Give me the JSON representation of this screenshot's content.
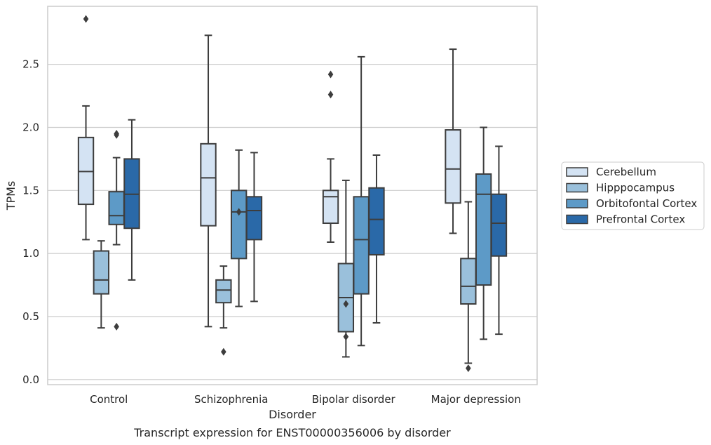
{
  "chart_data": {
    "type": "box",
    "caption": "Transcript expression for ENST00000356006 by disorder",
    "xlabel": "Disorder",
    "ylabel": "TPMs",
    "ylim": [
      -0.04,
      2.96
    ],
    "yticks": [
      0.0,
      0.5,
      1.0,
      1.5,
      2.0,
      2.5
    ],
    "ytick_labels": [
      "0.0",
      "0.5",
      "1.0",
      "1.5",
      "2.0",
      "2.5"
    ],
    "grid": "horizontal",
    "legend_position": "right",
    "categories": [
      "Control",
      "Schizophrenia",
      "Bipolar disorder",
      "Major depression"
    ],
    "series": [
      {
        "name": "Cerebellum",
        "color": "#d4e3f3",
        "boxes": [
          {
            "whisker_low": 1.11,
            "q1": 1.39,
            "median": 1.65,
            "q3": 1.92,
            "whisker_high": 2.17,
            "outliers": [
              2.86
            ]
          },
          {
            "whisker_low": 0.42,
            "q1": 1.22,
            "median": 1.6,
            "q3": 1.87,
            "whisker_high": 2.73,
            "outliers": []
          },
          {
            "whisker_low": 1.09,
            "q1": 1.24,
            "median": 1.45,
            "q3": 1.5,
            "whisker_high": 1.75,
            "outliers": [
              2.42,
              2.26
            ]
          },
          {
            "whisker_low": 1.16,
            "q1": 1.4,
            "median": 1.67,
            "q3": 1.98,
            "whisker_high": 2.62,
            "outliers": []
          }
        ]
      },
      {
        "name": "Hipppocampus",
        "color": "#9ac0db",
        "boxes": [
          {
            "whisker_low": 0.41,
            "q1": 0.68,
            "median": 0.79,
            "q3": 1.02,
            "whisker_high": 1.1,
            "outliers": []
          },
          {
            "whisker_low": 0.41,
            "q1": 0.61,
            "median": 0.71,
            "q3": 0.79,
            "whisker_high": 0.9,
            "outliers": [
              0.22
            ]
          },
          {
            "whisker_low": 0.18,
            "q1": 0.38,
            "median": 0.65,
            "q3": 0.92,
            "whisker_high": 1.58,
            "outliers": [
              0.6,
              0.34
            ]
          },
          {
            "whisker_low": 0.13,
            "q1": 0.6,
            "median": 0.74,
            "q3": 0.96,
            "whisker_high": 1.41,
            "outliers": [
              0.09
            ]
          }
        ]
      },
      {
        "name": "Orbitofontal Cortex",
        "color": "#5d9ac7",
        "boxes": [
          {
            "whisker_low": 1.07,
            "q1": 1.23,
            "median": 1.3,
            "q3": 1.49,
            "whisker_high": 1.76,
            "outliers": [
              1.95,
              1.94,
              0.42
            ]
          },
          {
            "whisker_low": 0.58,
            "q1": 0.96,
            "median": 1.33,
            "q3": 1.5,
            "whisker_high": 1.82,
            "outliers": [
              1.33
            ]
          },
          {
            "whisker_low": 0.27,
            "q1": 0.68,
            "median": 1.11,
            "q3": 1.45,
            "whisker_high": 2.56,
            "outliers": []
          },
          {
            "whisker_low": 0.32,
            "q1": 0.75,
            "median": 1.47,
            "q3": 1.63,
            "whisker_high": 2.0,
            "outliers": []
          }
        ]
      },
      {
        "name": "Prefrontal Cortex",
        "color": "#2a69a8",
        "boxes": [
          {
            "whisker_low": 0.79,
            "q1": 1.2,
            "median": 1.47,
            "q3": 1.75,
            "whisker_high": 2.06,
            "outliers": []
          },
          {
            "whisker_low": 0.62,
            "q1": 1.11,
            "median": 1.34,
            "q3": 1.45,
            "whisker_high": 1.8,
            "outliers": []
          },
          {
            "whisker_low": 0.45,
            "q1": 0.99,
            "median": 1.27,
            "q3": 1.52,
            "whisker_high": 1.78,
            "outliers": []
          },
          {
            "whisker_low": 0.36,
            "q1": 0.98,
            "median": 1.24,
            "q3": 1.47,
            "whisker_high": 1.85,
            "outliers": []
          }
        ]
      }
    ]
  }
}
